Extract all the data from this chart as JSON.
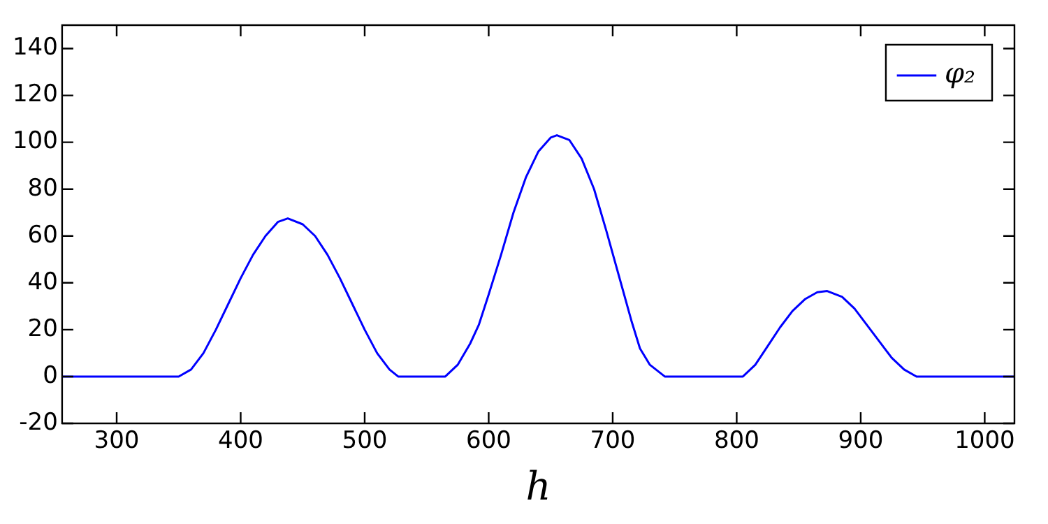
{
  "chart_data": {
    "type": "line",
    "xlabel": "h",
    "xlim": [
      256,
      1024
    ],
    "xticks": [
      300,
      400,
      500,
      600,
      700,
      800,
      900,
      1000
    ],
    "ylim": [
      -20,
      150
    ],
    "yticks": [
      -20,
      0,
      20,
      40,
      60,
      80,
      100,
      120,
      140
    ],
    "grid": false,
    "legend": "top right",
    "marker": "none",
    "line_style": "solid",
    "x": [
      256,
      300,
      350,
      360,
      370,
      380,
      390,
      400,
      410,
      420,
      430,
      438,
      450,
      460,
      470,
      480,
      490,
      500,
      510,
      520,
      527,
      565,
      575,
      585,
      592,
      600,
      610,
      620,
      630,
      640,
      650,
      655,
      665,
      675,
      685,
      695,
      705,
      715,
      722,
      730,
      742,
      805,
      815,
      825,
      835,
      845,
      855,
      865,
      873,
      885,
      895,
      905,
      915,
      925,
      935,
      945,
      1024
    ],
    "series": [
      {
        "name": "φ₂",
        "color": "#0000ff",
        "values": [
          0,
          0,
          0,
          3,
          10,
          20,
          31,
          42,
          52,
          60,
          66,
          67.5,
          65,
          60,
          52,
          42,
          31,
          20,
          10,
          3,
          0,
          0,
          5,
          14,
          22,
          35,
          52,
          70,
          85,
          96,
          102,
          103,
          101,
          93,
          80,
          62,
          43,
          24,
          12,
          5,
          0,
          0,
          5,
          13,
          21,
          28,
          33,
          36,
          36.5,
          34,
          29,
          22,
          15,
          8,
          3,
          0,
          0
        ]
      }
    ]
  }
}
